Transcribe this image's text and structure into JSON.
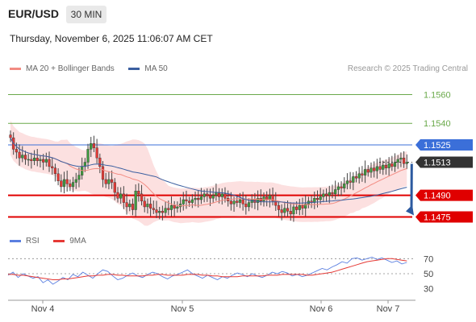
{
  "header": {
    "pair": "EUR/USD",
    "timeframe": "30 MIN"
  },
  "datetime": "Thursday, November 6, 2025 11:06:07 AM CET",
  "legend": {
    "ma20": "MA 20 + Bollinger Bands",
    "ma50": "MA 50",
    "credit": "Research © 2025 Trading Central",
    "rsi": "RSI",
    "rsi_ma": "9MA"
  },
  "colors": {
    "ma20": "#f28b82",
    "ma50": "#3b5fa0",
    "band_fill": "#fbd5d5",
    "bull": "#3f9a3f",
    "bear": "#e53935",
    "support": "#e00000",
    "resistance_line": "#3b6fd9",
    "target": "#6aa94a",
    "arrow": "#2c5aa0",
    "rsi": "#5b7fe0",
    "rsi_ma": "#e53935"
  },
  "chart_data": {
    "type": "candlestick",
    "y_unit": "EUR/USD",
    "ylim": [
      1.1468,
      1.1572
    ],
    "x_ticks": [
      "Nov 4",
      "Nov 5",
      "Nov 6",
      "Nov 7"
    ],
    "last_price": 1.1513,
    "levels": [
      {
        "label": "1.1560",
        "value": 1.156,
        "kind": "target"
      },
      {
        "label": "1.1540",
        "value": 1.154,
        "kind": "target"
      },
      {
        "label": "1.1525",
        "value": 1.1525,
        "kind": "resistance"
      },
      {
        "label": "1.1513",
        "value": 1.1513,
        "kind": "last"
      },
      {
        "label": "1.1490",
        "value": 1.149,
        "kind": "support"
      },
      {
        "label": "1.1475",
        "value": 1.1475,
        "kind": "support"
      }
    ],
    "forecast": {
      "from": 1.1513,
      "to": 1.1475
    },
    "closes": [
      1.153,
      1.1522,
      1.152,
      1.1516,
      1.1518,
      1.1515,
      1.1515,
      1.1514,
      1.1516,
      1.1514,
      1.1515,
      1.1513,
      1.1515,
      1.151,
      1.1509,
      1.1505,
      1.15,
      1.1496,
      1.1501,
      1.1498,
      1.1496,
      1.1499,
      1.1501,
      1.1504,
      1.151,
      1.1513,
      1.1522,
      1.1526,
      1.1523,
      1.1516,
      1.151,
      1.1501,
      1.1498,
      1.1501,
      1.1499,
      1.1492,
      1.1488,
      1.1491,
      1.1485,
      1.1482,
      1.1484,
      1.148,
      1.1493,
      1.1491,
      1.1486,
      1.1482,
      1.1484,
      1.1481,
      1.148,
      1.1478,
      1.1479,
      1.1478,
      1.1481,
      1.148,
      1.1483,
      1.1481,
      1.1482,
      1.1484,
      1.1487,
      1.1486,
      1.1485,
      1.1487,
      1.1488,
      1.1487,
      1.1489,
      1.1491,
      1.149,
      1.1488,
      1.149,
      1.1492,
      1.1489,
      1.1491,
      1.1488,
      1.1486,
      1.1484,
      1.1486,
      1.1485,
      1.1487,
      1.1484,
      1.1482,
      1.1485,
      1.1487,
      1.1485,
      1.1488,
      1.1486,
      1.1489,
      1.1487,
      1.149,
      1.1486,
      1.1483,
      1.148,
      1.1478,
      1.1481,
      1.1479,
      1.1477,
      1.1482,
      1.148,
      1.1483,
      1.1481,
      1.1484,
      1.1486,
      1.1485,
      1.1488,
      1.1487,
      1.1489,
      1.1491,
      1.149,
      1.1492,
      1.1491,
      1.1494,
      1.1496,
      1.1495,
      1.1498,
      1.15,
      1.1499,
      1.1503,
      1.1502,
      1.1505,
      1.1504,
      1.1508,
      1.1506,
      1.1509,
      1.1507,
      1.151,
      1.1508,
      1.1511,
      1.1509,
      1.1512,
      1.151,
      1.1513,
      1.1515,
      1.1516,
      1.1512,
      1.1513
    ],
    "rsi": {
      "y_ticks": [
        70,
        50,
        30
      ],
      "ylim": [
        20,
        80
      ],
      "rsi_values": [
        48,
        52,
        45,
        50,
        47,
        44,
        46,
        38,
        42,
        36,
        40,
        45,
        42,
        49,
        46,
        52,
        48,
        44,
        50,
        55,
        53,
        47,
        42,
        44,
        48,
        51,
        47,
        45,
        49,
        52,
        50,
        46,
        43,
        47,
        49,
        52,
        55,
        50,
        47,
        44,
        48,
        45,
        42,
        46,
        44,
        48,
        51,
        49,
        46,
        50,
        47,
        45,
        48,
        52,
        50,
        53,
        51,
        47,
        49,
        46,
        48,
        51,
        54,
        57,
        55,
        59,
        62,
        66,
        64,
        70,
        71,
        68,
        70,
        72,
        69,
        71,
        68,
        65,
        67,
        63,
        65
      ],
      "ma9_values": [
        49,
        49,
        48,
        48,
        47,
        46,
        45,
        44,
        43,
        42,
        42,
        43,
        43,
        44,
        45,
        46,
        47,
        47,
        48,
        48,
        49,
        49,
        48,
        48,
        47,
        47,
        47,
        47,
        48,
        48,
        49,
        49,
        48,
        48,
        48,
        48,
        49,
        49,
        49,
        48,
        48,
        47,
        47,
        46,
        46,
        46,
        46,
        47,
        47,
        47,
        47,
        47,
        48,
        48,
        48,
        49,
        49,
        49,
        49,
        49,
        48,
        48,
        49,
        50,
        51,
        52,
        54,
        56,
        58,
        60,
        62,
        64,
        66,
        67,
        68,
        69,
        70,
        70,
        69,
        68,
        67
      ]
    }
  }
}
